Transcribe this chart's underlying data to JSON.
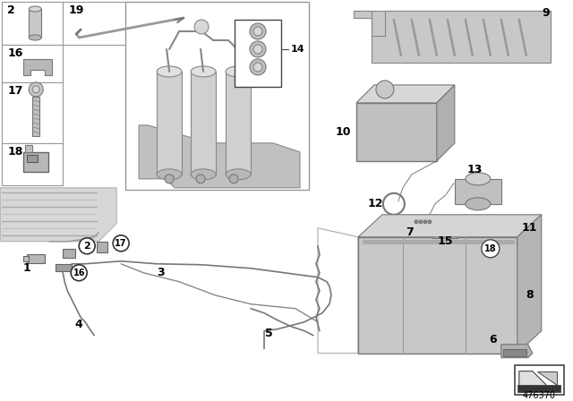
{
  "background_color": "#ffffff",
  "diagram_number": "476370",
  "parts_gray": "#b0b0b0",
  "parts_dark": "#888888",
  "parts_light": "#d0d0d0",
  "line_color": "#555555",
  "box_color": "#000000"
}
